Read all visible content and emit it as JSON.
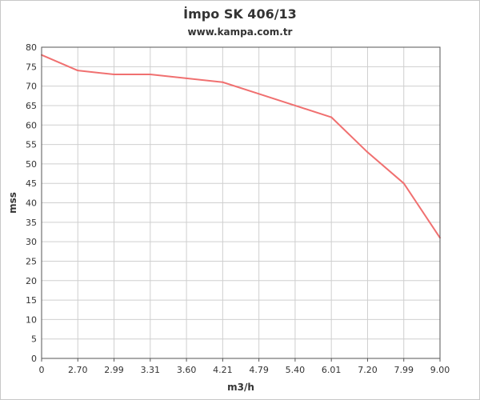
{
  "chart_data": {
    "type": "line",
    "title": "İmpo SK 406/13",
    "subtitle": "www.kampa.com.tr",
    "xlabel": "m3/h",
    "ylabel": "mss",
    "categories": [
      "0",
      "2.70",
      "2.99",
      "3.31",
      "3.60",
      "4.21",
      "4.79",
      "5.40",
      "6.01",
      "7.20",
      "7.99",
      "9.00"
    ],
    "series": [
      {
        "values": [
          78,
          74,
          73,
          73,
          72,
          71,
          68,
          65,
          62,
          53,
          45,
          31
        ]
      }
    ],
    "ylim": [
      0,
      80
    ],
    "ytick_step": 5,
    "grid": true,
    "legend": "none",
    "line_color": "#f07070"
  }
}
